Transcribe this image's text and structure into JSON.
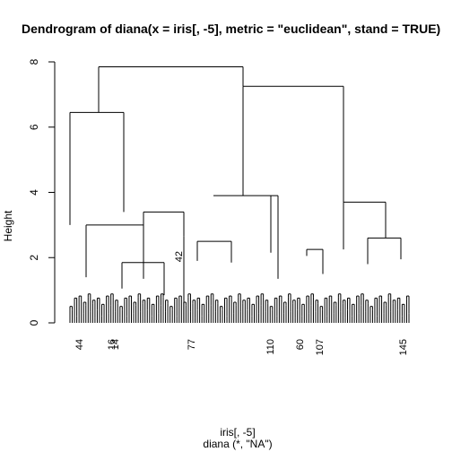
{
  "chart_data": {
    "type": "dendrogram",
    "title": "Dendrogram of  diana(x = iris[, -5], metric = \"euclidean\", stand = TRUE)",
    "ylabel": "Height",
    "xlabel": "iris[, -5]",
    "sublabel": "diana (*, \"NA\")",
    "yticks": [
      0,
      2,
      4,
      6,
      8
    ],
    "ylim": [
      0,
      8
    ],
    "leaf_count": 150,
    "merges": [
      {
        "height": 7.85,
        "children": [
          "A",
          "B"
        ]
      },
      {
        "id": "A",
        "height": 6.45,
        "children": [
          "A1",
          "A2"
        ]
      },
      {
        "id": "A1",
        "height": 3.0
      },
      {
        "id": "A2",
        "height": 3.4,
        "children": [
          "A2a",
          "leaf-42"
        ]
      },
      {
        "id": "A2a",
        "height": 1.85
      },
      {
        "id": "B",
        "height": 7.25,
        "children": [
          "B1",
          "B2"
        ]
      },
      {
        "id": "B1",
        "height": 3.9,
        "children": [
          "B1a",
          "B1b"
        ]
      },
      {
        "id": "B1a",
        "height": 3.9
      },
      {
        "id": "B1b",
        "height": 2.5
      },
      {
        "id": "B2",
        "height": 3.7,
        "children": [
          "B2a",
          "B2b"
        ]
      },
      {
        "id": "B2a",
        "height": 2.25
      },
      {
        "id": "B2b",
        "height": 2.6
      }
    ],
    "visible_leaf_labels": [
      "44",
      "42",
      "16",
      "14",
      "77",
      "110",
      "60",
      "107",
      "145"
    ]
  }
}
